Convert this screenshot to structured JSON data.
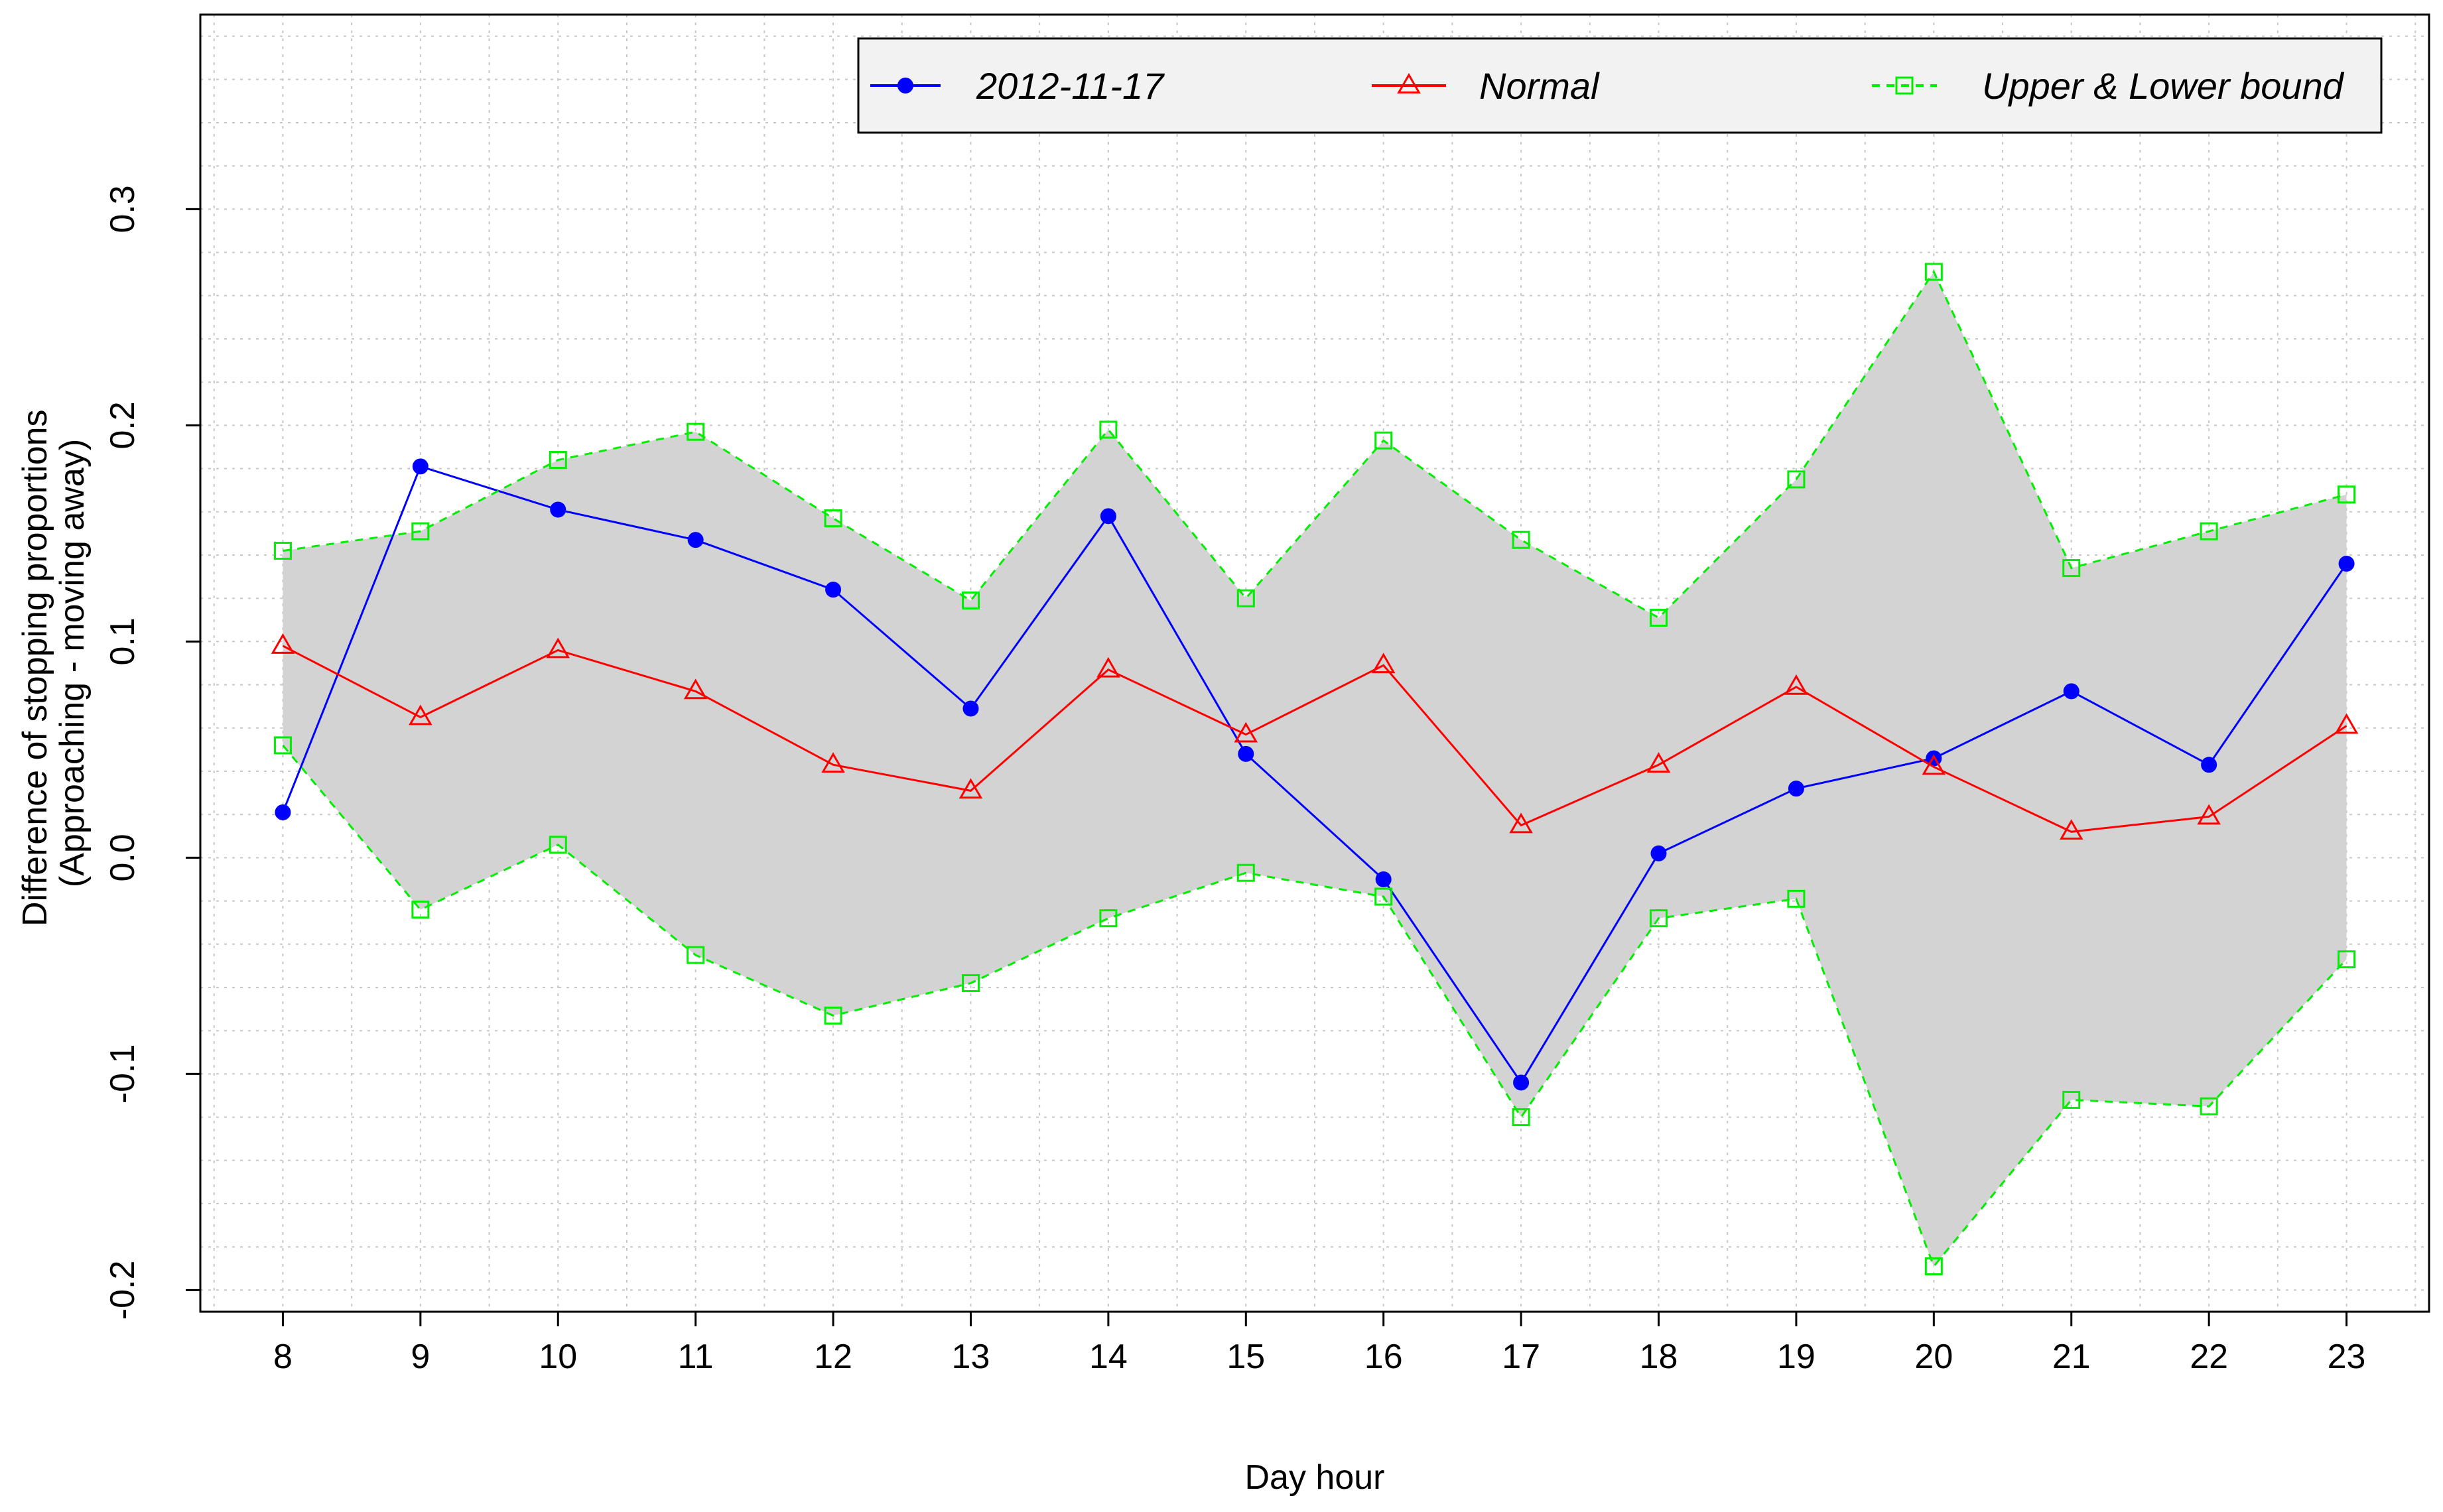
{
  "chart_data": {
    "type": "line",
    "title": "",
    "xlabel": "Day hour",
    "ylabel_lines": [
      "Difference of stopping proportions",
      "(Approaching - moving away)"
    ],
    "x": [
      8,
      9,
      10,
      11,
      12,
      13,
      14,
      15,
      16,
      17,
      18,
      19,
      20,
      21,
      22,
      23
    ],
    "xticks": [
      "8",
      "9",
      "10",
      "11",
      "12",
      "13",
      "14",
      "15",
      "16",
      "17",
      "18",
      "19",
      "20",
      "21",
      "22",
      "23"
    ],
    "yticks": [
      -0.2,
      -0.1,
      0.0,
      0.1,
      0.2,
      0.3
    ],
    "ytick_labels": [
      "-0.2",
      "-0.1",
      "0.0",
      "0.1",
      "0.2",
      "0.3"
    ],
    "xlim": [
      7.4,
      23.6
    ],
    "ylim": [
      -0.21,
      0.39
    ],
    "grid": true,
    "legend_position": "top-right",
    "band_fill": "#d3d3d3",
    "series": [
      {
        "name": "2012-11-17",
        "color": "#0000ff",
        "marker": "filled-circle",
        "line": "solid",
        "values": [
          0.021,
          0.181,
          0.161,
          0.147,
          0.124,
          0.069,
          0.158,
          0.048,
          -0.01,
          -0.104,
          0.002,
          0.032,
          0.046,
          0.077,
          0.043,
          0.136
        ]
      },
      {
        "name": "Normal",
        "color": "#ff0000",
        "marker": "open-triangle",
        "line": "solid",
        "values": [
          0.098,
          0.065,
          0.096,
          0.077,
          0.043,
          0.031,
          0.087,
          0.057,
          0.089,
          0.015,
          0.043,
          0.079,
          0.042,
          0.012,
          0.019,
          0.061
        ]
      },
      {
        "name": "Upper & Lower bound",
        "color": "#00ee00",
        "marker": "open-square",
        "line": "dashed",
        "upper": [
          0.142,
          0.151,
          0.184,
          0.197,
          0.157,
          0.119,
          0.198,
          0.12,
          0.193,
          0.147,
          0.111,
          0.175,
          0.271,
          0.134,
          0.151,
          0.168
        ],
        "lower": [
          0.052,
          -0.024,
          0.006,
          -0.045,
          -0.073,
          -0.058,
          -0.028,
          -0.007,
          -0.018,
          -0.12,
          -0.028,
          -0.019,
          -0.189,
          -0.112,
          -0.115,
          -0.047
        ]
      }
    ]
  }
}
